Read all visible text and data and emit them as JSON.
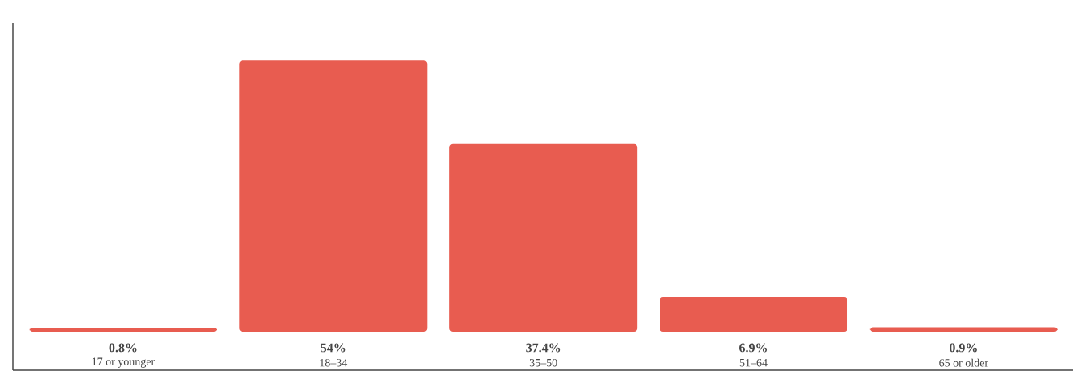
{
  "chart_data": {
    "type": "bar",
    "categories": [
      "17 or younger",
      "18–34",
      "35–50",
      "51–64",
      "65 or older"
    ],
    "values": [
      0.8,
      54,
      37.4,
      6.9,
      0.9
    ],
    "value_labels": [
      "0.8%",
      "54%",
      "37.4%",
      "6.9%",
      "0.9%"
    ],
    "color": "#e85c50"
  }
}
